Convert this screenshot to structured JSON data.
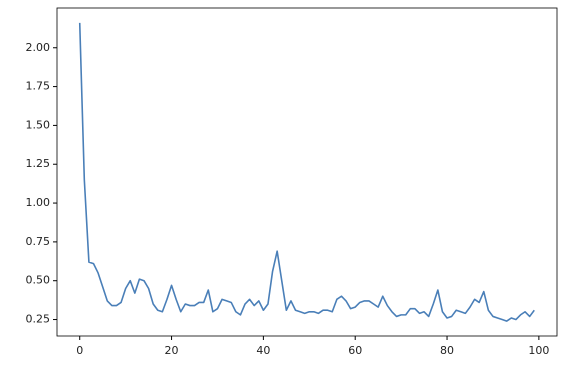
{
  "chart_data": {
    "type": "line",
    "x": [
      0,
      1,
      2,
      3,
      4,
      5,
      6,
      7,
      8,
      9,
      10,
      11,
      12,
      13,
      14,
      15,
      16,
      17,
      18,
      19,
      20,
      21,
      22,
      23,
      24,
      25,
      26,
      27,
      28,
      29,
      30,
      31,
      32,
      33,
      34,
      35,
      36,
      37,
      38,
      39,
      40,
      41,
      42,
      43,
      44,
      45,
      46,
      47,
      48,
      49,
      50,
      51,
      52,
      53,
      54,
      55,
      56,
      57,
      58,
      59,
      60,
      61,
      62,
      63,
      64,
      65,
      66,
      67,
      68,
      69,
      70,
      71,
      72,
      73,
      74,
      75,
      76,
      77,
      78,
      79,
      80,
      81,
      82,
      83,
      84,
      85,
      86,
      87,
      88,
      89,
      90,
      91,
      92,
      93,
      94,
      95,
      96,
      97,
      98,
      99
    ],
    "series": [
      {
        "color": "#4a7fb8",
        "values": [
          2.16,
          1.15,
          0.62,
          0.61,
          0.55,
          0.46,
          0.37,
          0.34,
          0.34,
          0.36,
          0.45,
          0.5,
          0.42,
          0.51,
          0.5,
          0.45,
          0.35,
          0.31,
          0.3,
          0.38,
          0.47,
          0.38,
          0.3,
          0.35,
          0.34,
          0.34,
          0.36,
          0.36,
          0.44,
          0.3,
          0.32,
          0.38,
          0.37,
          0.36,
          0.3,
          0.28,
          0.35,
          0.38,
          0.34,
          0.37,
          0.31,
          0.35,
          0.56,
          0.69,
          0.5,
          0.31,
          0.37,
          0.31,
          0.3,
          0.29,
          0.3,
          0.3,
          0.29,
          0.31,
          0.31,
          0.3,
          0.38,
          0.4,
          0.37,
          0.32,
          0.33,
          0.36,
          0.37,
          0.37,
          0.35,
          0.33,
          0.4,
          0.34,
          0.3,
          0.27,
          0.28,
          0.28,
          0.32,
          0.32,
          0.29,
          0.3,
          0.27,
          0.35,
          0.44,
          0.3,
          0.26,
          0.27,
          0.31,
          0.3,
          0.29,
          0.33,
          0.38,
          0.36,
          0.43,
          0.31,
          0.27,
          0.26,
          0.25,
          0.24,
          0.26,
          0.25,
          0.28,
          0.3,
          0.27,
          0.31
        ]
      }
    ],
    "xlim": [
      -4.95,
      103.95
    ],
    "xticks": [
      0,
      20,
      40,
      60,
      80,
      100
    ],
    "ylim": [
      0.144,
      2.256
    ],
    "yticks": [
      0.25,
      {
        "value": 0.5,
        "label": "0.50"
      },
      0.75,
      {
        "value": 1,
        "label": "1.00"
      },
      1.25,
      {
        "value": 1.5,
        "label": "1.50"
      },
      1.75,
      {
        "value": 2,
        "label": "2.00"
      }
    ],
    "grid": false
  }
}
